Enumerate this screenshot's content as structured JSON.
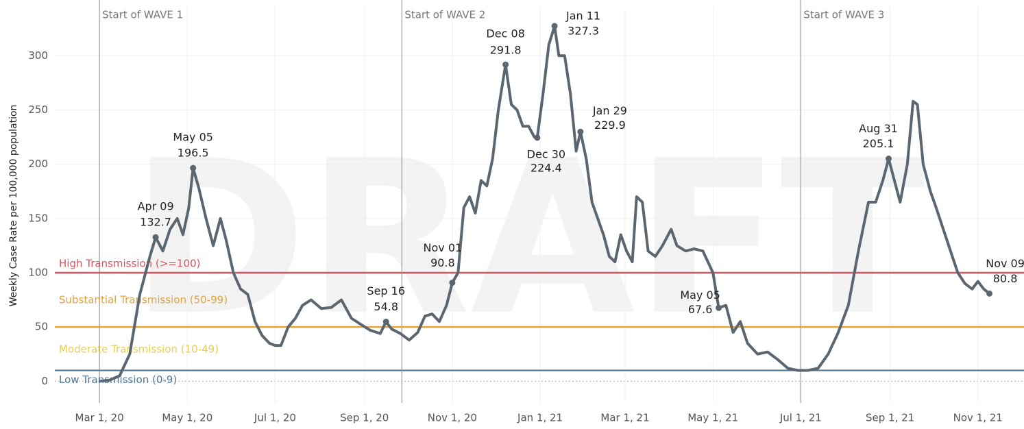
{
  "chart_data": {
    "type": "line",
    "watermark": "DRAFT",
    "ylabel": "Weekly Case Rate per 100,000 population",
    "xlim": [
      "2020-01-30",
      "2021-12-03"
    ],
    "xticks": [
      {
        "value": "2020-03-01",
        "label": "Mar 1, 20"
      },
      {
        "value": "2020-05-01",
        "label": "May 1, 20"
      },
      {
        "value": "2020-07-01",
        "label": "Jul 1, 20"
      },
      {
        "value": "2020-09-01",
        "label": "Sep 1, 20"
      },
      {
        "value": "2020-11-01",
        "label": "Nov 1, 20"
      },
      {
        "value": "2021-01-01",
        "label": "Jan 1, 21"
      },
      {
        "value": "2021-03-01",
        "label": "Mar 1, 21"
      },
      {
        "value": "2021-05-01",
        "label": "May 1, 21"
      },
      {
        "value": "2021-07-01",
        "label": "Jul 1, 21"
      },
      {
        "value": "2021-09-01",
        "label": "Sep 1, 21"
      },
      {
        "value": "2021-11-01",
        "label": "Nov 1, 21"
      }
    ],
    "ylim": [
      -20,
      345
    ],
    "yticks": [
      0,
      50,
      100,
      150,
      200,
      250,
      300
    ],
    "grid": true,
    "x": [
      "2020-03-01",
      "2020-03-08",
      "2020-03-15",
      "2020-03-22",
      "2020-03-29",
      "2020-04-05",
      "2020-04-09",
      "2020-04-14",
      "2020-04-19",
      "2020-04-24",
      "2020-04-28",
      "2020-05-02",
      "2020-05-05",
      "2020-05-09",
      "2020-05-14",
      "2020-05-19",
      "2020-05-24",
      "2020-05-28",
      "2020-06-02",
      "2020-06-07",
      "2020-06-12",
      "2020-06-17",
      "2020-06-22",
      "2020-06-27",
      "2020-07-01",
      "2020-07-05",
      "2020-07-10",
      "2020-07-15",
      "2020-07-20",
      "2020-07-26",
      "2020-08-02",
      "2020-08-09",
      "2020-08-16",
      "2020-08-23",
      "2020-08-30",
      "2020-09-05",
      "2020-09-12",
      "2020-09-16",
      "2020-09-20",
      "2020-09-26",
      "2020-10-02",
      "2020-10-08",
      "2020-10-13",
      "2020-10-18",
      "2020-10-23",
      "2020-10-28",
      "2020-11-01",
      "2020-11-05",
      "2020-11-09",
      "2020-11-13",
      "2020-11-17",
      "2020-11-21",
      "2020-11-25",
      "2020-11-29",
      "2020-12-03",
      "2020-12-08",
      "2020-12-12",
      "2020-12-16",
      "2020-12-20",
      "2020-12-24",
      "2020-12-28",
      "2020-12-30",
      "2021-01-03",
      "2021-01-07",
      "2021-01-11",
      "2021-01-14",
      "2021-01-18",
      "2021-01-22",
      "2021-01-26",
      "2021-01-29",
      "2021-02-02",
      "2021-02-06",
      "2021-02-10",
      "2021-02-14",
      "2021-02-18",
      "2021-02-22",
      "2021-02-26",
      "2021-03-02",
      "2021-03-06",
      "2021-03-09",
      "2021-03-13",
      "2021-03-17",
      "2021-03-22",
      "2021-03-27",
      "2021-04-02",
      "2021-04-06",
      "2021-04-12",
      "2021-04-18",
      "2021-04-24",
      "2021-05-01",
      "2021-05-05",
      "2021-05-10",
      "2021-05-15",
      "2021-05-20",
      "2021-05-25",
      "2021-06-01",
      "2021-06-08",
      "2021-06-15",
      "2021-06-22",
      "2021-06-29",
      "2021-07-06",
      "2021-07-13",
      "2021-07-20",
      "2021-07-27",
      "2021-08-03",
      "2021-08-10",
      "2021-08-17",
      "2021-08-22",
      "2021-08-27",
      "2021-08-31",
      "2021-09-04",
      "2021-09-08",
      "2021-09-13",
      "2021-09-17",
      "2021-09-20",
      "2021-09-24",
      "2021-09-29",
      "2021-10-03",
      "2021-10-08",
      "2021-10-13",
      "2021-10-18",
      "2021-10-23",
      "2021-10-28",
      "2021-11-01",
      "2021-11-05",
      "2021-11-09"
    ],
    "series": [
      {
        "color": "#5b6670",
        "values": [
          0,
          1,
          5,
          25,
          80,
          115,
          132.7,
          120,
          140,
          150,
          135,
          160,
          196.5,
          178,
          150,
          125,
          150,
          130,
          100,
          85,
          80,
          55,
          42,
          35,
          33,
          33,
          50,
          58,
          70,
          75,
          67,
          68,
          75,
          58,
          52,
          47,
          44,
          54.8,
          48,
          44,
          38,
          45,
          60,
          62,
          55,
          70,
          90.8,
          100,
          160,
          170,
          155,
          185,
          180,
          205,
          250,
          291.8,
          255,
          250,
          235,
          235,
          225,
          224.4,
          265,
          310,
          327.3,
          300,
          300,
          265,
          212,
          229.9,
          205,
          165,
          150,
          135,
          115,
          110,
          135,
          120,
          110,
          170,
          165,
          120,
          115,
          125,
          140,
          125,
          120,
          122,
          120,
          100,
          67.6,
          70,
          45,
          55,
          35,
          25,
          27,
          20,
          12,
          10,
          10,
          12,
          25,
          45,
          70,
          120,
          165,
          165,
          185,
          205.1,
          185,
          165,
          200,
          258,
          255,
          200,
          175,
          160,
          140,
          120,
          100,
          90,
          85,
          92,
          85,
          80.8
        ]
      }
    ],
    "thresholds": [
      {
        "label": "High Transmission (>=100)",
        "value": 100,
        "color": "#d9545e"
      },
      {
        "label": "Substantial Transmission (50-99)",
        "value": 50,
        "color": "#e2a33a"
      },
      {
        "label": "Moderate Transmission (10-49)",
        "value": 10,
        "color": "#e8cd55"
      },
      {
        "label": "Low Transmission (0-9)",
        "value": 0,
        "color": "#557a99"
      }
    ],
    "waves": [
      {
        "label": "Start of WAVE 1",
        "x": "2020-03-01"
      },
      {
        "label": "Start of WAVE 2",
        "x": "2020-09-27"
      },
      {
        "label": "Start of WAVE 3",
        "x": "2021-07-01"
      }
    ],
    "annotations": [
      {
        "label": "Apr 09",
        "x": "2020-04-09",
        "y": 132.7
      },
      {
        "label": "May 05",
        "x": "2020-05-05",
        "y": 196.5
      },
      {
        "label": "Sep 16",
        "x": "2020-09-16",
        "y": 54.8
      },
      {
        "label": "Nov 01",
        "x": "2020-11-01",
        "y": 90.8
      },
      {
        "label": "Dec 08",
        "x": "2020-12-08",
        "y": 291.8
      },
      {
        "label": "Jan 11",
        "x": "2021-01-11",
        "y": 327.3
      },
      {
        "label": "Dec 30",
        "x": "2020-12-30",
        "y": 224.4
      },
      {
        "label": "Jan 29",
        "x": "2021-01-29",
        "y": 229.9
      },
      {
        "label": "May 05",
        "x": "2021-05-05",
        "y": 67.6
      },
      {
        "label": "Aug 31",
        "x": "2021-08-31",
        "y": 205.1
      },
      {
        "label": "Nov 09",
        "x": "2021-11-09",
        "y": 80.8
      }
    ]
  }
}
